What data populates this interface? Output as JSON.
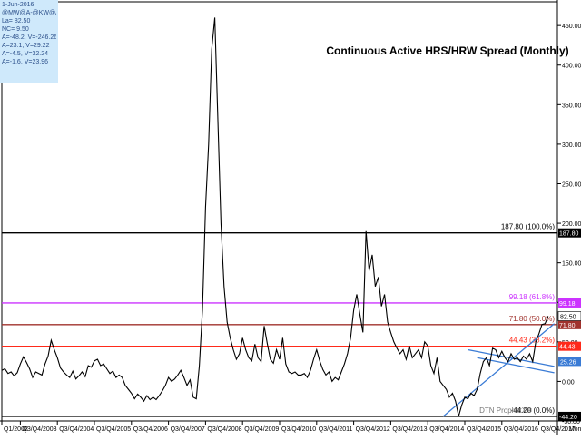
{
  "info_box": {
    "date": "1-Jun-2016",
    "symbols": "@MW@A-@KW@A",
    "last": "La= 82.50",
    "net_change": "NC= 9.50",
    "ma_lines": [
      "A=-48.2, V=-246.26",
      "A=23.1, V=29.22",
      "A=-4.5, V=32.24",
      "A=-1.6, V=23.96"
    ]
  },
  "footer": {
    "watermark": "DTN ProphetX®",
    "period": "1 Mon"
  },
  "colors": {
    "price": "#000000",
    "fib_100": "#000000",
    "fib_618": "#cc33ff",
    "fib_50": "#a0322d",
    "fib_382": "#ff2a1a",
    "fib_0": "#000000",
    "trend": "#3a7bd5",
    "info_bg": "#cfe9fb"
  },
  "chart_data": {
    "type": "line",
    "title": "Continuous Active HRS/HRW Spread (Monthly)",
    "xlabel": "",
    "ylabel": "",
    "ylim": [
      -50,
      480
    ],
    "y_ticks": [
      450,
      400,
      350,
      300,
      250,
      200,
      150,
      100,
      50,
      0,
      -50
    ],
    "y_tick_labels": [
      "450.00",
      "400.00",
      "350.00",
      "300.00",
      "250.00",
      "200.00",
      "150.00",
      "100.00",
      "50.00",
      "0.00",
      "-50.00"
    ],
    "x_range": [
      "2002-12",
      "2017-12"
    ],
    "x_ticks": [
      {
        "label": "Q1/2002",
        "date": "2002-12"
      },
      {
        "label": "Q3/Q4/2003",
        "date": "2003-06"
      },
      {
        "label": "Q3/Q4/2004",
        "date": "2004-06"
      },
      {
        "label": "Q3/Q4/2005",
        "date": "2005-06"
      },
      {
        "label": "Q3/Q4/2006",
        "date": "2006-06"
      },
      {
        "label": "Q3/Q4/2007",
        "date": "2007-06"
      },
      {
        "label": "Q3/Q4/2008",
        "date": "2008-06"
      },
      {
        "label": "Q3/Q4/2009",
        "date": "2009-06"
      },
      {
        "label": "Q3/Q4/2010",
        "date": "2010-06"
      },
      {
        "label": "Q3/Q4/2011",
        "date": "2011-06"
      },
      {
        "label": "Q3/Q4/2012",
        "date": "2012-06"
      },
      {
        "label": "Q3/Q4/2013",
        "date": "2013-06"
      },
      {
        "label": "Q3/Q4/2014",
        "date": "2014-06"
      },
      {
        "label": "Q3/Q4/2015",
        "date": "2015-06"
      },
      {
        "label": "Q3/Q4/2016",
        "date": "2016-06"
      },
      {
        "label": "Q3/Q4/2017",
        "date": "2017-06"
      }
    ],
    "levels": [
      {
        "value": 187.8,
        "label": "187.80 (100.0%)",
        "axis_label": "187.80",
        "color_key": "fib_100"
      },
      {
        "value": 99.18,
        "label": "99.18 (61.8%)",
        "axis_label": "99.18",
        "color_key": "fib_618"
      },
      {
        "value": 71.8,
        "label": "71.80 (50.0%)",
        "axis_label": "71.80",
        "color_key": "fib_50"
      },
      {
        "value": 44.43,
        "label": "44.43 (38.2%)",
        "axis_label": "44.43",
        "color_key": "fib_382"
      },
      {
        "value": -44.2,
        "label": "-44.20 (0.0%)",
        "axis_label": "-44.20",
        "color_key": "fib_0"
      }
    ],
    "last_value": {
      "value": 82.5,
      "label": "82.50"
    },
    "trend_value": {
      "value": 25.26,
      "label": "25.26"
    },
    "trendlines": [
      {
        "from": [
          "2014-11",
          -44.2
        ],
        "to": [
          "2017-11",
          73
        ]
      },
      {
        "from": [
          "2015-07",
          40
        ],
        "to": [
          "2017-11",
          19
        ]
      },
      {
        "from": [
          "2015-10",
          30
        ],
        "to": [
          "2017-11",
          11
        ]
      }
    ],
    "series": [
      {
        "values": [
          [
            "2002-12",
            14
          ],
          [
            "2003-01",
            16
          ],
          [
            "2003-02",
            10
          ],
          [
            "2003-03",
            12
          ],
          [
            "2003-04",
            7
          ],
          [
            "2003-05",
            11
          ],
          [
            "2003-06",
            22
          ],
          [
            "2003-07",
            31
          ],
          [
            "2003-08",
            24
          ],
          [
            "2003-09",
            16
          ],
          [
            "2003-10",
            5
          ],
          [
            "2003-11",
            12
          ],
          [
            "2003-12",
            10
          ],
          [
            "2004-01",
            8
          ],
          [
            "2004-02",
            22
          ],
          [
            "2004-03",
            32
          ],
          [
            "2004-04",
            52
          ],
          [
            "2004-05",
            40
          ],
          [
            "2004-06",
            30
          ],
          [
            "2004-07",
            17
          ],
          [
            "2004-08",
            12
          ],
          [
            "2004-09",
            8
          ],
          [
            "2004-10",
            5
          ],
          [
            "2004-11",
            13
          ],
          [
            "2004-12",
            3
          ],
          [
            "2005-01",
            7
          ],
          [
            "2005-02",
            12
          ],
          [
            "2005-03",
            6
          ],
          [
            "2005-04",
            20
          ],
          [
            "2005-05",
            18
          ],
          [
            "2005-06",
            26
          ],
          [
            "2005-07",
            28
          ],
          [
            "2005-08",
            20
          ],
          [
            "2005-09",
            22
          ],
          [
            "2005-10",
            16
          ],
          [
            "2005-11",
            10
          ],
          [
            "2005-12",
            13
          ],
          [
            "2006-01",
            5
          ],
          [
            "2006-02",
            8
          ],
          [
            "2006-03",
            5
          ],
          [
            "2006-04",
            -5
          ],
          [
            "2006-05",
            -10
          ],
          [
            "2006-06",
            -15
          ],
          [
            "2006-07",
            -22
          ],
          [
            "2006-08",
            -16
          ],
          [
            "2006-09",
            -20
          ],
          [
            "2006-10",
            -25
          ],
          [
            "2006-11",
            -18
          ],
          [
            "2006-12",
            -23
          ],
          [
            "2007-01",
            -20
          ],
          [
            "2007-02",
            -23
          ],
          [
            "2007-03",
            -18
          ],
          [
            "2007-04",
            -12
          ],
          [
            "2007-05",
            -5
          ],
          [
            "2007-06",
            5
          ],
          [
            "2007-07",
            0
          ],
          [
            "2007-08",
            3
          ],
          [
            "2007-09",
            8
          ],
          [
            "2007-10",
            14
          ],
          [
            "2007-11",
            5
          ],
          [
            "2007-12",
            -5
          ],
          [
            "2008-01",
            2
          ],
          [
            "2008-02",
            -20
          ],
          [
            "2008-03",
            -22
          ],
          [
            "2008-04",
            20
          ],
          [
            "2008-05",
            90
          ],
          [
            "2008-06",
            220
          ],
          [
            "2008-07",
            300
          ],
          [
            "2008-08",
            420
          ],
          [
            "2008-09",
            460
          ],
          [
            "2008-10",
            330
          ],
          [
            "2008-11",
            200
          ],
          [
            "2008-12",
            120
          ],
          [
            "2009-01",
            75
          ],
          [
            "2009-02",
            55
          ],
          [
            "2009-03",
            40
          ],
          [
            "2009-04",
            28
          ],
          [
            "2009-05",
            35
          ],
          [
            "2009-06",
            55
          ],
          [
            "2009-07",
            40
          ],
          [
            "2009-08",
            30
          ],
          [
            "2009-09",
            26
          ],
          [
            "2009-10",
            47
          ],
          [
            "2009-11",
            30
          ],
          [
            "2009-12",
            25
          ],
          [
            "2010-01",
            70
          ],
          [
            "2010-02",
            48
          ],
          [
            "2010-03",
            28
          ],
          [
            "2010-04",
            23
          ],
          [
            "2010-05",
            40
          ],
          [
            "2010-06",
            28
          ],
          [
            "2010-07",
            55
          ],
          [
            "2010-08",
            22
          ],
          [
            "2010-09",
            12
          ],
          [
            "2010-10",
            10
          ],
          [
            "2010-11",
            12
          ],
          [
            "2010-12",
            8
          ],
          [
            "2011-01",
            8
          ],
          [
            "2011-02",
            10
          ],
          [
            "2011-03",
            5
          ],
          [
            "2011-04",
            14
          ],
          [
            "2011-05",
            28
          ],
          [
            "2011-06",
            40
          ],
          [
            "2011-07",
            26
          ],
          [
            "2011-08",
            15
          ],
          [
            "2011-09",
            8
          ],
          [
            "2011-10",
            12
          ],
          [
            "2011-11",
            0
          ],
          [
            "2011-12",
            5
          ],
          [
            "2012-01",
            2
          ],
          [
            "2012-02",
            12
          ],
          [
            "2012-03",
            22
          ],
          [
            "2012-04",
            35
          ],
          [
            "2012-05",
            55
          ],
          [
            "2012-06",
            90
          ],
          [
            "2012-07",
            110
          ],
          [
            "2012-08",
            85
          ],
          [
            "2012-09",
            62
          ],
          [
            "2012-10",
            190
          ],
          [
            "2012-11",
            140
          ],
          [
            "2012-12",
            160
          ],
          [
            "2013-01",
            120
          ],
          [
            "2013-02",
            132
          ],
          [
            "2013-03",
            95
          ],
          [
            "2013-04",
            110
          ],
          [
            "2013-05",
            75
          ],
          [
            "2013-06",
            62
          ],
          [
            "2013-07",
            50
          ],
          [
            "2013-08",
            42
          ],
          [
            "2013-09",
            35
          ],
          [
            "2013-10",
            40
          ],
          [
            "2013-11",
            28
          ],
          [
            "2013-12",
            45
          ],
          [
            "2014-01",
            30
          ],
          [
            "2014-02",
            35
          ],
          [
            "2014-03",
            40
          ],
          [
            "2014-04",
            30
          ],
          [
            "2014-05",
            50
          ],
          [
            "2014-06",
            45
          ],
          [
            "2014-07",
            20
          ],
          [
            "2014-08",
            10
          ],
          [
            "2014-09",
            30
          ],
          [
            "2014-10",
            0
          ],
          [
            "2014-11",
            -5
          ],
          [
            "2014-12",
            -10
          ],
          [
            "2015-01",
            -20
          ],
          [
            "2015-02",
            -15
          ],
          [
            "2015-03",
            -25
          ],
          [
            "2015-04",
            -44
          ],
          [
            "2015-05",
            -30
          ],
          [
            "2015-06",
            -20
          ],
          [
            "2015-07",
            -22
          ],
          [
            "2015-08",
            -15
          ],
          [
            "2015-09",
            -18
          ],
          [
            "2015-10",
            -10
          ],
          [
            "2015-11",
            10
          ],
          [
            "2015-12",
            25
          ],
          [
            "2016-01",
            30
          ],
          [
            "2016-02",
            20
          ],
          [
            "2016-03",
            42
          ],
          [
            "2016-04",
            40
          ],
          [
            "2016-05",
            30
          ],
          [
            "2016-06",
            38
          ],
          [
            "2016-07",
            30
          ],
          [
            "2016-08",
            25
          ],
          [
            "2016-09",
            35
          ],
          [
            "2016-10",
            28
          ],
          [
            "2016-11",
            30
          ],
          [
            "2016-12",
            25
          ],
          [
            "2017-01",
            32
          ],
          [
            "2017-02",
            28
          ],
          [
            "2017-03",
            35
          ],
          [
            "2017-04",
            25
          ],
          [
            "2017-05",
            50
          ],
          [
            "2017-06",
            60
          ],
          [
            "2017-07",
            72
          ],
          [
            "2017-08",
            73
          ],
          [
            "2017-09",
            82.5
          ]
        ]
      }
    ]
  }
}
